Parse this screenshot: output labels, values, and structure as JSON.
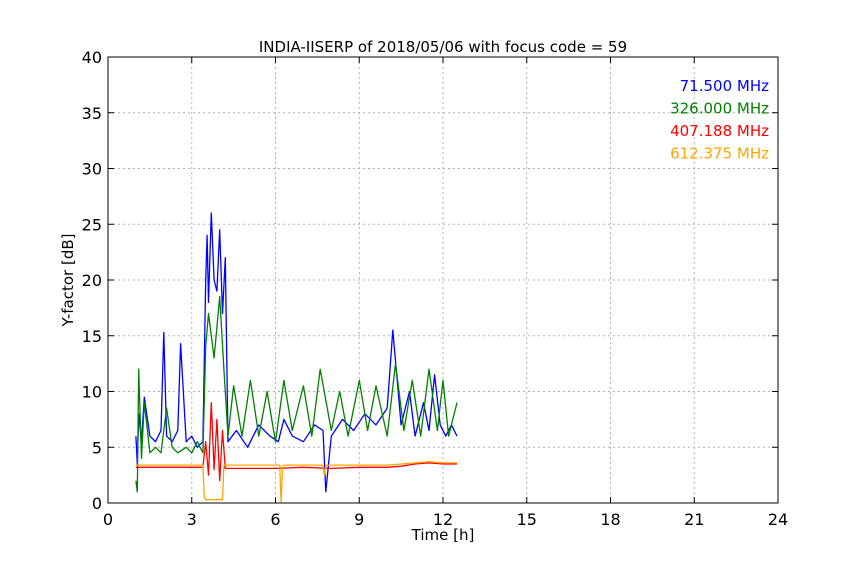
{
  "chart_data": {
    "type": "line",
    "title": "INDIA-IISERP of 2018/05/06 with focus code = 59",
    "xlabel": "Time [h]",
    "ylabel": "Y-factor [dB]",
    "xlim": [
      0,
      24
    ],
    "ylim": [
      0,
      40
    ],
    "xticks": [
      0,
      3,
      6,
      9,
      12,
      15,
      18,
      21,
      24
    ],
    "yticks": [
      0,
      5,
      10,
      15,
      20,
      25,
      30,
      35,
      40
    ],
    "grid": true,
    "legend_position": "top-right",
    "series": [
      {
        "name": "71.500 MHz",
        "color": "#0000ff",
        "x": [
          1.0,
          1.05,
          1.1,
          1.2,
          1.3,
          1.5,
          1.7,
          1.9,
          2.0,
          2.1,
          2.3,
          2.5,
          2.6,
          2.8,
          3.0,
          3.2,
          3.4,
          3.5,
          3.55,
          3.6,
          3.7,
          3.8,
          3.9,
          4.0,
          4.1,
          4.2,
          4.3,
          4.6,
          5.0,
          5.4,
          5.8,
          6.1,
          6.3,
          6.6,
          7.0,
          7.4,
          7.7,
          7.8,
          8.0,
          8.4,
          8.8,
          9.2,
          9.6,
          10.0,
          10.2,
          10.5,
          10.8,
          11.0,
          11.3,
          11.5,
          11.7,
          11.9,
          12.1,
          12.3,
          12.5
        ],
        "y": [
          6.0,
          3.5,
          8.0,
          5.5,
          9.5,
          6.0,
          5.5,
          6.5,
          15.3,
          6.0,
          5.5,
          6.5,
          14.3,
          5.5,
          6.0,
          5.0,
          5.5,
          20.0,
          24.0,
          18.0,
          26.0,
          20.0,
          19.0,
          24.5,
          17.0,
          22.0,
          5.5,
          6.5,
          5.0,
          7.0,
          6.0,
          5.5,
          7.5,
          6.0,
          5.5,
          7.0,
          6.5,
          1.0,
          6.0,
          7.5,
          6.5,
          8.0,
          7.0,
          8.5,
          15.5,
          7.0,
          10.0,
          6.0,
          9.0,
          6.5,
          11.5,
          7.0,
          6.0,
          7.0,
          6.0
        ]
      },
      {
        "name": "326.000 MHz",
        "color": "#008000",
        "x": [
          1.0,
          1.05,
          1.1,
          1.2,
          1.3,
          1.5,
          1.7,
          1.9,
          2.1,
          2.3,
          2.5,
          2.8,
          3.0,
          3.2,
          3.4,
          3.5,
          3.6,
          3.8,
          4.0,
          4.15,
          4.3,
          4.5,
          4.8,
          5.1,
          5.4,
          5.7,
          6.0,
          6.3,
          6.6,
          7.0,
          7.3,
          7.6,
          8.0,
          8.3,
          8.6,
          9.0,
          9.3,
          9.6,
          10.0,
          10.3,
          10.6,
          10.9,
          11.2,
          11.5,
          11.8,
          12.0,
          12.2,
          12.5
        ],
        "y": [
          2.0,
          1.0,
          12.0,
          4.0,
          9.0,
          4.5,
          5.0,
          4.5,
          8.5,
          5.0,
          4.5,
          5.0,
          4.5,
          5.5,
          4.5,
          14.0,
          17.0,
          13.0,
          18.5,
          12.0,
          6.0,
          10.5,
          6.0,
          11.0,
          6.0,
          10.0,
          5.5,
          11.0,
          6.5,
          10.5,
          6.0,
          12.0,
          6.5,
          10.0,
          6.0,
          11.0,
          6.5,
          10.5,
          6.0,
          12.5,
          6.5,
          11.0,
          6.0,
          12.0,
          6.5,
          11.0,
          6.0,
          9.0
        ]
      },
      {
        "name": "407.188 MHz",
        "color": "#ff0000",
        "x": [
          1.0,
          2.0,
          3.0,
          3.4,
          3.5,
          3.6,
          3.7,
          3.8,
          3.9,
          4.0,
          4.1,
          4.2,
          5.0,
          6.0,
          7.0,
          8.0,
          9.0,
          10.0,
          10.5,
          11.0,
          11.5,
          12.0,
          12.5
        ],
        "y": [
          3.2,
          3.2,
          3.2,
          3.2,
          5.5,
          2.5,
          9.0,
          3.0,
          7.5,
          2.0,
          6.5,
          3.1,
          3.1,
          3.1,
          3.2,
          3.1,
          3.2,
          3.2,
          3.3,
          3.5,
          3.6,
          3.5,
          3.5
        ]
      },
      {
        "name": "612.375 MHz",
        "color": "#ffa500",
        "x": [
          1.0,
          2.0,
          3.0,
          3.4,
          3.45,
          3.5,
          4.0,
          4.1,
          4.15,
          5.0,
          6.0,
          6.15,
          6.2,
          6.25,
          6.3,
          7.0,
          7.7,
          7.75,
          7.8,
          8.0,
          9.0,
          10.0,
          10.5,
          11.0,
          11.5,
          12.0,
          12.5
        ],
        "y": [
          3.4,
          3.4,
          3.4,
          3.4,
          0.5,
          0.3,
          0.3,
          0.3,
          3.4,
          3.4,
          3.4,
          3.4,
          0.1,
          3.3,
          3.4,
          3.4,
          3.4,
          2.5,
          3.4,
          3.4,
          3.4,
          3.4,
          3.5,
          3.6,
          3.7,
          3.6,
          3.6
        ]
      }
    ]
  }
}
